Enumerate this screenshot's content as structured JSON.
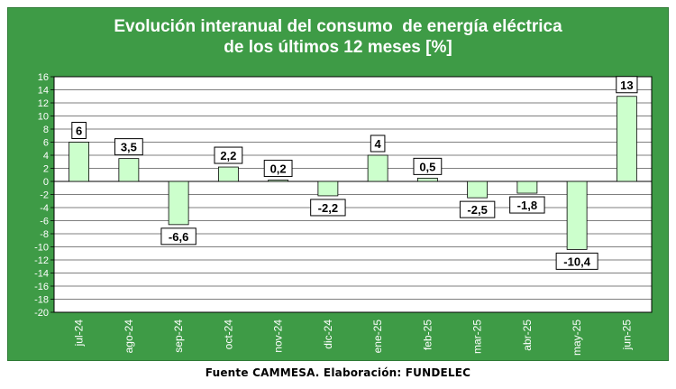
{
  "title_line1": "Evolución interanual del consumo  de energía eléctrica",
  "title_line2": "de los últimos 12 meses [%]",
  "footer": "Fuente CAMMESA. Elaboración: FUNDELEC",
  "colors": {
    "panel": "#3e9b46",
    "plot_bg": "#ffffff",
    "bar_fill": "#ccffcc",
    "bar_stroke": "#000000",
    "grid": "#000000",
    "title_text": "#ffffff"
  },
  "chart_data": {
    "type": "bar",
    "categories": [
      "jul-24",
      "ago-24",
      "sep-24",
      "oct-24",
      "nov-24",
      "dic-24",
      "ene-25",
      "feb-25",
      "mar-25",
      "abr-25",
      "may-25",
      "jun-25"
    ],
    "values": [
      6,
      3.5,
      -6.6,
      2.2,
      0.2,
      -2.2,
      4,
      0.5,
      -2.5,
      -1.8,
      -10.4,
      13
    ],
    "data_labels": [
      "6",
      "3,5",
      "-6,6",
      "2,2",
      "0,2",
      "-2,2",
      "4",
      "0,5",
      "-2,5",
      "-1,8",
      "-10,4",
      "13"
    ],
    "ylim": [
      -20,
      16
    ],
    "ytick_step": 2,
    "grid": true,
    "legend": "none"
  }
}
